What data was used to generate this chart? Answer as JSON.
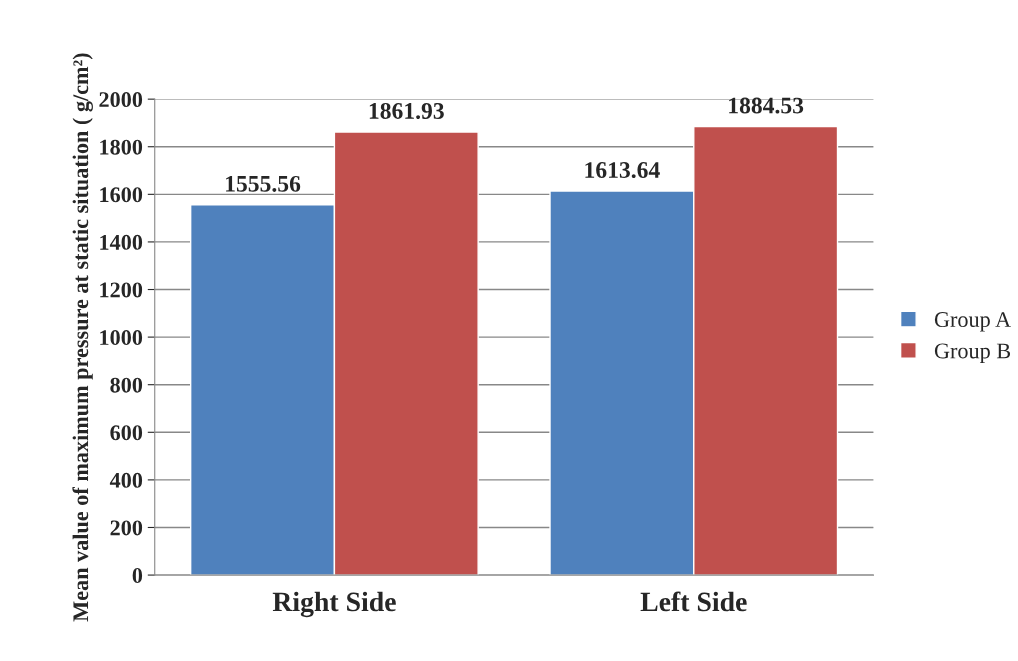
{
  "chart_data": {
    "type": "bar",
    "ylabel": "Mean value of maximum pressure at static situation ( g/cm²)",
    "categories": [
      "Right Side",
      "Left Side"
    ],
    "series": [
      {
        "name": "Group A",
        "color": "#4f81bd",
        "values": [
          1555.56,
          1613.64
        ]
      },
      {
        "name": "Group B",
        "color": "#c0504d",
        "values": [
          1861.93,
          1884.53
        ]
      }
    ],
    "ylim": [
      0,
      2000
    ],
    "yticks": [
      0,
      200,
      400,
      600,
      800,
      1000,
      1200,
      1400,
      1600,
      1800,
      2000
    ],
    "grid": "y",
    "legend": "right",
    "data_labels": true
  }
}
